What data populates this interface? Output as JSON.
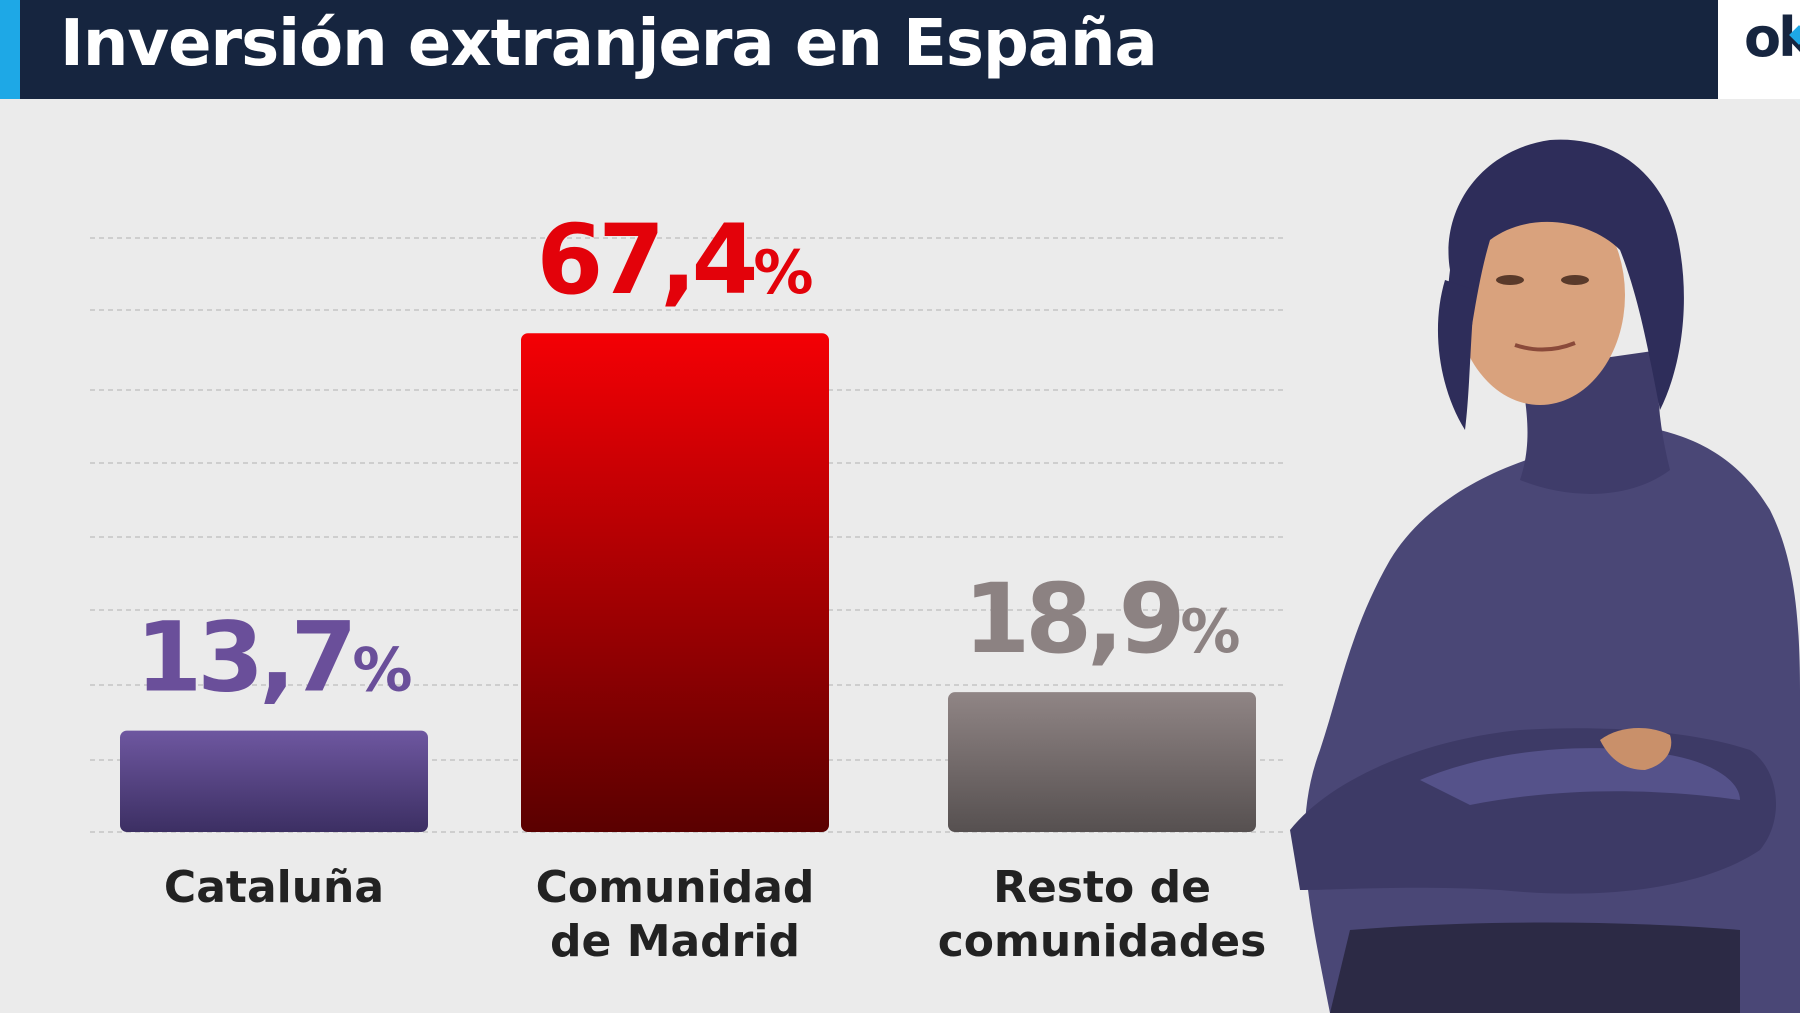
{
  "header": {
    "title": "Inversión extranjera en España",
    "logo_text": "ok"
  },
  "colors": {
    "header_bg": "#16253f",
    "accent": "#1ea8e6",
    "background": "#ebebeb"
  },
  "chart_data": {
    "type": "bar",
    "title": "Inversión extranjera en España",
    "categories": [
      "Cataluña",
      "Comunidad de Madrid",
      "Resto de comunidades"
    ],
    "category_lines": [
      [
        "Cataluña"
      ],
      [
        "Comunidad",
        "de Madrid"
      ],
      [
        "Resto de",
        "comunidades"
      ]
    ],
    "values": [
      13.7,
      67.4,
      18.9
    ],
    "value_labels": [
      {
        "number": "13,7",
        "unit": "%"
      },
      {
        "number": "67,4",
        "unit": "%"
      },
      {
        "number": "18,9",
        "unit": "%"
      }
    ],
    "colors": [
      "#6a4f9a",
      "#e3020a",
      "#8c8282"
    ],
    "ylim": [
      0,
      80
    ],
    "grid": true,
    "legend": "none"
  },
  "image": {
    "description_icon": "woman-arms-crossed-portrait"
  }
}
